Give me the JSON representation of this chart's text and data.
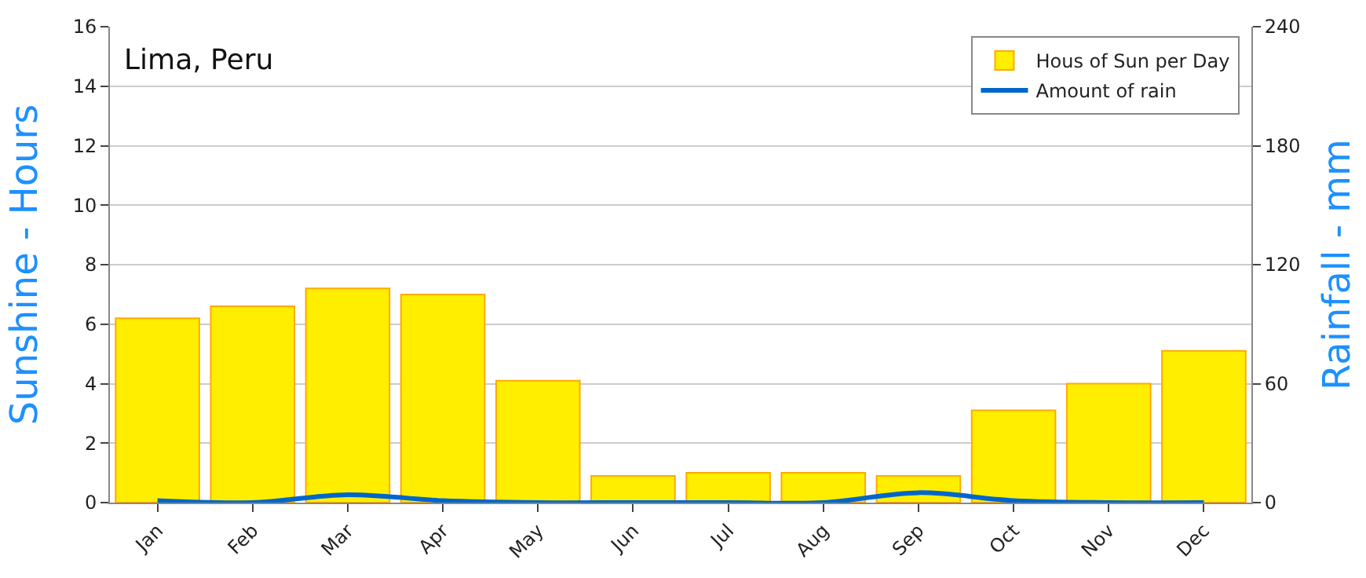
{
  "chart_data": {
    "type": "bar",
    "title": "Lima, Peru",
    "ylabel": "Sunshine - Hours",
    "y2label": "Rainfall - mm",
    "categories": [
      "Jan",
      "Feb",
      "Mar",
      "Apr",
      "May",
      "Jun",
      "Jul",
      "Aug",
      "Sep",
      "Oct",
      "Nov",
      "Dec"
    ],
    "series": [
      {
        "name": "Hous of Sun per Day",
        "color": "#ffee00",
        "values": [
          6.2,
          6.6,
          7.2,
          7.0,
          4.1,
          0.9,
          1.0,
          1.0,
          0.9,
          3.1,
          4.0,
          5.1
        ]
      },
      {
        "name": "Amount of rain",
        "type": "line",
        "axis": "y2",
        "color": "#0066cc",
        "values": [
          1,
          0,
          4,
          1,
          0,
          0,
          0,
          0,
          5,
          1,
          0,
          0
        ]
      }
    ],
    "ylim": [
      0,
      16
    ],
    "yticks": [
      0,
      2,
      4,
      6,
      8,
      10,
      12,
      14,
      16
    ],
    "y2lim": [
      0,
      240
    ],
    "y2ticks": [
      0,
      60,
      120,
      180,
      240
    ],
    "grid": "y",
    "legend": "top right"
  }
}
